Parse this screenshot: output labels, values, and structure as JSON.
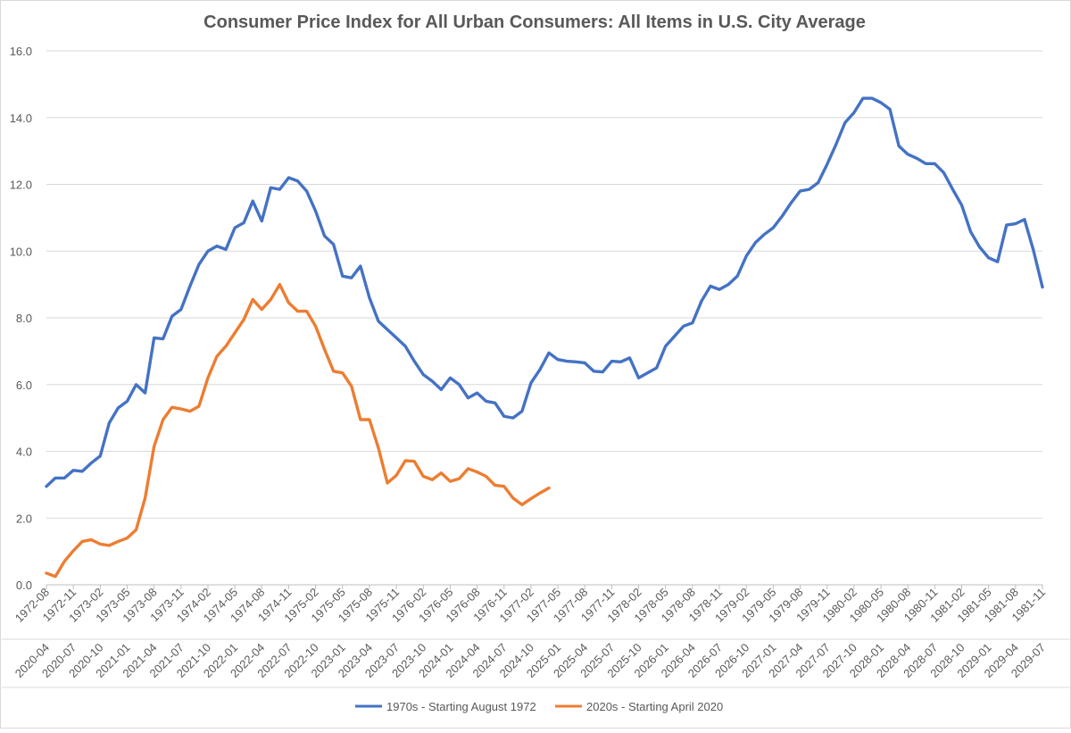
{
  "chart_data": {
    "type": "line",
    "title": "Consumer Price Index for All Urban Consumers: All Items in U.S. City Average",
    "xlabel": "",
    "ylabel": "",
    "ylim": [
      0,
      16
    ],
    "yticks": [
      "0.0",
      "2.0",
      "4.0",
      "6.0",
      "8.0",
      "10.0",
      "12.0",
      "14.0",
      "16.0"
    ],
    "grid": "horizontal",
    "legend_position": "bottom",
    "x_primary_labels": [
      "1972-08",
      "1972-11",
      "1973-02",
      "1973-05",
      "1973-08",
      "1973-11",
      "1974-02",
      "1974-05",
      "1974-08",
      "1974-11",
      "1975-02",
      "1975-05",
      "1975-08",
      "1975-11",
      "1976-02",
      "1976-05",
      "1976-08",
      "1976-11",
      "1977-02",
      "1977-05",
      "1977-08",
      "1977-11",
      "1978-02",
      "1978-05",
      "1978-08",
      "1978-11",
      "1979-02",
      "1979-05",
      "1979-08",
      "1979-11",
      "1980-02",
      "1980-05",
      "1980-08",
      "1980-11",
      "1981-02",
      "1981-05",
      "1981-08",
      "1981-11"
    ],
    "x_secondary_labels": [
      "2020-04",
      "2020-07",
      "2020-10",
      "2021-01",
      "2021-04",
      "2021-07",
      "2021-10",
      "2022-01",
      "2022-04",
      "2022-07",
      "2022-10",
      "2023-01",
      "2023-04",
      "2023-07",
      "2023-10",
      "2024-01",
      "2024-04",
      "2024-07",
      "2024-10",
      "2025-01",
      "2025-04",
      "2025-07",
      "2025-10",
      "2026-01",
      "2026-04",
      "2026-07",
      "2026-10",
      "2027-01",
      "2027-04",
      "2027-07",
      "2027-10",
      "2028-01",
      "2028-04",
      "2028-07",
      "2028-10",
      "2029-01",
      "2029-04",
      "2029-07"
    ],
    "series": [
      {
        "name": "1970s - Starting August 1972",
        "color": "#4472C4",
        "values": [
          2.95,
          3.2,
          3.2,
          3.43,
          3.4,
          3.65,
          3.86,
          4.85,
          5.3,
          5.5,
          6.0,
          5.75,
          7.4,
          7.37,
          8.05,
          8.25,
          8.95,
          9.6,
          10.0,
          10.15,
          10.05,
          10.7,
          10.85,
          11.5,
          10.9,
          11.9,
          11.85,
          12.2,
          12.1,
          11.8,
          11.2,
          10.45,
          10.2,
          9.25,
          9.2,
          9.55,
          8.6,
          7.9,
          7.65,
          7.4,
          7.15,
          6.7,
          6.3,
          6.1,
          5.85,
          6.2,
          6.0,
          5.6,
          5.75,
          5.5,
          5.45,
          5.05,
          5.0,
          5.2,
          6.05,
          6.45,
          6.95,
          6.75,
          6.7,
          6.68,
          6.65,
          6.4,
          6.38,
          6.7,
          6.68,
          6.8,
          6.2,
          6.35,
          6.5,
          7.15,
          7.45,
          7.75,
          7.85,
          8.5,
          8.95,
          8.85,
          9.0,
          9.25,
          9.85,
          10.25,
          10.5,
          10.7,
          11.05,
          11.45,
          11.8,
          11.85,
          12.05,
          12.6,
          13.2,
          13.85,
          14.15,
          14.58,
          14.58,
          14.45,
          14.25,
          13.15,
          12.9,
          12.78,
          12.62,
          12.62,
          12.35,
          11.85,
          11.38,
          10.58,
          10.12,
          9.8,
          9.68,
          10.78,
          10.82,
          10.95,
          10.02,
          8.92
        ]
      },
      {
        "name": "2020s - Starting April 2020",
        "color": "#ED7D31",
        "values": [
          0.35,
          0.25,
          0.7,
          1.02,
          1.3,
          1.35,
          1.22,
          1.18,
          1.3,
          1.4,
          1.65,
          2.6,
          4.15,
          4.95,
          5.32,
          5.27,
          5.2,
          5.35,
          6.2,
          6.85,
          7.15,
          7.55,
          7.95,
          8.55,
          8.25,
          8.55,
          9.0,
          8.45,
          8.2,
          8.2,
          7.75,
          7.05,
          6.4,
          6.35,
          5.95,
          4.95,
          4.95,
          4.1,
          3.05,
          3.28,
          3.72,
          3.7,
          3.25,
          3.15,
          3.35,
          3.1,
          3.18,
          3.48,
          3.38,
          3.25,
          2.98,
          2.95,
          2.6,
          2.4,
          2.58,
          2.75,
          2.9
        ]
      }
    ]
  }
}
